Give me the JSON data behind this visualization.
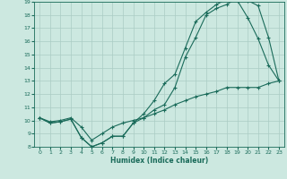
{
  "title": "",
  "xlabel": "Humidex (Indice chaleur)",
  "bg_color": "#cce8e0",
  "grid_color": "#aaccc4",
  "line_color": "#1a6b5a",
  "xlim": [
    -0.5,
    23.5
  ],
  "ylim": [
    8,
    19
  ],
  "yticks": [
    8,
    9,
    10,
    11,
    12,
    13,
    14,
    15,
    16,
    17,
    18,
    19
  ],
  "xticks": [
    0,
    1,
    2,
    3,
    4,
    5,
    6,
    7,
    8,
    9,
    10,
    11,
    12,
    13,
    14,
    15,
    16,
    17,
    18,
    19,
    20,
    21,
    22,
    23
  ],
  "line1_x": [
    0,
    1,
    2,
    3,
    4,
    5,
    6,
    7,
    8,
    9,
    10,
    11,
    12,
    13,
    14,
    15,
    16,
    17,
    18,
    19,
    20,
    21,
    22,
    23
  ],
  "line1_y": [
    10.2,
    9.8,
    9.9,
    10.1,
    8.7,
    8.0,
    8.3,
    8.8,
    8.8,
    9.8,
    10.5,
    11.5,
    12.8,
    13.5,
    15.5,
    17.5,
    18.2,
    18.8,
    19.2,
    19.1,
    17.8,
    16.2,
    14.2,
    13.0
  ],
  "line2_x": [
    0,
    1,
    2,
    3,
    4,
    5,
    6,
    7,
    8,
    9,
    10,
    11,
    12,
    13,
    14,
    15,
    16,
    17,
    18,
    19,
    20,
    21,
    22,
    23
  ],
  "line2_y": [
    10.2,
    9.8,
    9.9,
    10.1,
    8.7,
    8.0,
    8.3,
    8.8,
    8.8,
    9.8,
    10.2,
    10.8,
    11.2,
    12.5,
    14.8,
    16.3,
    18.0,
    18.5,
    18.8,
    19.3,
    19.1,
    18.7,
    16.3,
    13.0
  ],
  "line3_x": [
    0,
    1,
    2,
    3,
    4,
    5,
    6,
    7,
    8,
    9,
    10,
    11,
    12,
    13,
    14,
    15,
    16,
    17,
    18,
    19,
    20,
    21,
    22,
    23
  ],
  "line3_y": [
    10.2,
    9.9,
    10.0,
    10.2,
    9.5,
    8.5,
    9.0,
    9.5,
    9.8,
    10.0,
    10.2,
    10.5,
    10.8,
    11.2,
    11.5,
    11.8,
    12.0,
    12.2,
    12.5,
    12.5,
    12.5,
    12.5,
    12.8,
    13.0
  ]
}
